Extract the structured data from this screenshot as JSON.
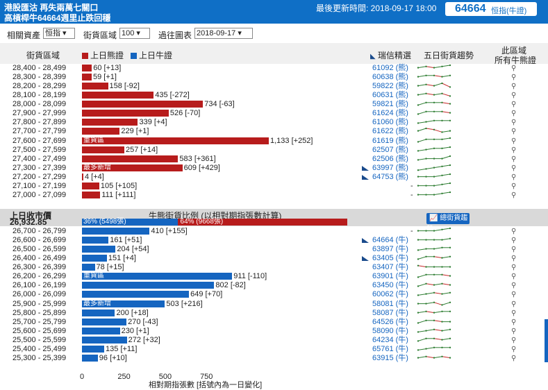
{
  "header": {
    "line1": "港股匯沽 再失兩萬七關口",
    "line2": "高槓桿牛64664週里止跌回穩",
    "update_label": "最後更新時間: 2018-09-17 18:00",
    "badge_number": "64664",
    "badge_label": "恒指(牛證)"
  },
  "filters": {
    "asset_label": "相關資產",
    "asset_value": "恒指 ▾",
    "zone_label": "街貨區域",
    "zone_value": "100 ▾",
    "date_label": "過往圖表",
    "date_value": "2018-09-17 ▾"
  },
  "columns": {
    "zone": "街貨區域",
    "bear": "上日熊證",
    "bull": "上日牛證",
    "pick": "瑞信精選",
    "trend": "五日街貨趨勢",
    "lookup_line1": "此區域",
    "lookup_line2": "所有牛熊證"
  },
  "colors": {
    "bear": "#b71c1c",
    "bull": "#1565c0",
    "up": "#2e7d32",
    "down": "#c62828"
  },
  "bear_rows": [
    {
      "range": "28,400 - 28,499",
      "value": 60,
      "label": "60 [+13]",
      "code": "61092 (熊)",
      "pick": false,
      "tag": "",
      "trend": [
        3,
        4,
        3,
        4,
        5
      ],
      "lookup": true
    },
    {
      "range": "28,300 - 28,399",
      "value": 59,
      "label": "59 [+1]",
      "code": "60638 (熊)",
      "pick": false,
      "tag": "",
      "trend": [
        3,
        4,
        4,
        3,
        4
      ],
      "lookup": true
    },
    {
      "range": "28,200 - 28,299",
      "value": 158,
      "label": "158 [-92]",
      "code": "59822 (熊)",
      "pick": false,
      "tag": "",
      "trend": [
        3,
        4,
        3,
        5,
        2
      ],
      "lookup": true
    },
    {
      "range": "28,100 - 28,199",
      "value": 435,
      "label": "435 [-272]",
      "code": "60631 (熊)",
      "pick": false,
      "tag": "",
      "trend": [
        3,
        4,
        3,
        4,
        2
      ],
      "lookup": true
    },
    {
      "range": "28,000 - 28,099",
      "value": 734,
      "label": "734 [-63]",
      "code": "59821 (熊)",
      "pick": false,
      "tag": "",
      "trend": [
        2,
        4,
        4,
        4,
        3
      ],
      "lookup": true
    },
    {
      "range": "27,900 - 27,999",
      "value": 526,
      "label": "526 [-70]",
      "code": "61624 (熊)",
      "pick": false,
      "tag": "",
      "trend": [
        2,
        4,
        4,
        4,
        3
      ],
      "lookup": true
    },
    {
      "range": "27,800 - 27,899",
      "value": 339,
      "label": "339 [+4]",
      "code": "61060 (熊)",
      "pick": false,
      "tag": "",
      "trend": [
        2,
        3,
        4,
        4,
        4
      ],
      "lookup": true
    },
    {
      "range": "27,700 - 27,799",
      "value": 229,
      "label": "229 [+1]",
      "code": "61622 (熊)",
      "pick": false,
      "tag": "",
      "trend": [
        3,
        5,
        4,
        2,
        3
      ],
      "lookup": true
    },
    {
      "range": "27,600 - 27,699",
      "value": 1133,
      "label": "1,133 [+252]",
      "code": "61619 (熊)",
      "pick": false,
      "tag": "重貨區",
      "trend": [
        2,
        4,
        4,
        4,
        5
      ],
      "lookup": true
    },
    {
      "range": "27,500 - 27,599",
      "value": 257,
      "label": "257 [+14]",
      "code": "62507 (熊)",
      "pick": false,
      "tag": "",
      "trend": [
        2,
        3,
        4,
        4,
        5
      ],
      "lookup": true
    },
    {
      "range": "27,400 - 27,499",
      "value": 583,
      "label": "583 [+361]",
      "code": "62506 (熊)",
      "pick": false,
      "tag": "",
      "trend": [
        2,
        3,
        3,
        3,
        5
      ],
      "lookup": true
    },
    {
      "range": "27,300 - 27,399",
      "value": 609,
      "label": "609 [+429]",
      "code": "63997 (熊)",
      "pick": true,
      "tag": "最多新增",
      "trend": [
        1,
        2,
        3,
        4,
        5
      ],
      "lookup": true
    },
    {
      "range": "27,200 - 27,299",
      "value": 4,
      "label": "4 [+4]",
      "code": "64753 (熊)",
      "pick": true,
      "tag": "",
      "trend": [
        3,
        3,
        3,
        4,
        5
      ],
      "lookup": true
    },
    {
      "range": "27,100 - 27,199",
      "value": 105,
      "label": "105 [+105]",
      "code": "-",
      "pick": false,
      "tag": "",
      "trend": [
        3,
        3,
        3,
        4,
        5
      ],
      "lookup": true
    },
    {
      "range": "27,000 - 27,099",
      "value": 111,
      "label": "111 [+111]",
      "code": "-",
      "pick": false,
      "tag": "",
      "trend": [
        3,
        3,
        3,
        4,
        5
      ],
      "lookup": true
    }
  ],
  "midbar": {
    "close_label": "上日收市價",
    "close_value": "26,932.85",
    "ratio_title": "牛熊街貨比例 (以相對期指張數計算)",
    "bull_pct": 36,
    "bull_text": "36% (5498張)",
    "bear_text": "64% (9668張)",
    "button": "總街貨趨勢"
  },
  "bull_rows": [
    {
      "range": "26,700 - 26,799",
      "value": 410,
      "label": "410 [+155]",
      "code": "-",
      "pick": false,
      "tag": "",
      "trend": [
        3,
        3,
        3,
        4,
        5
      ],
      "lookup": true
    },
    {
      "range": "26,600 - 26,699",
      "value": 161,
      "label": "161 [+51]",
      "code": "64664 (牛)",
      "pick": true,
      "tag": "",
      "trend": [
        3,
        3,
        3,
        3,
        4
      ],
      "lookup": true
    },
    {
      "range": "26,500 - 26,599",
      "value": 204,
      "label": "204 [+54]",
      "code": "63897 (牛)",
      "pick": false,
      "tag": "",
      "trend": [
        2,
        3,
        3,
        4,
        4
      ],
      "lookup": true
    },
    {
      "range": "26,400 - 26,499",
      "value": 151,
      "label": "151 [+4]",
      "code": "63405 (牛)",
      "pick": true,
      "tag": "",
      "trend": [
        2,
        4,
        4,
        3,
        4
      ],
      "lookup": true
    },
    {
      "range": "26,300 - 26,399",
      "value": 78,
      "label": "78 [+15]",
      "code": "63407 (牛)",
      "pick": false,
      "tag": "",
      "trend": [
        4,
        3,
        3,
        3,
        3
      ],
      "lookup": true
    },
    {
      "range": "26,200 - 26,299",
      "value": 911,
      "label": "911 [-110]",
      "code": "63901 (牛)",
      "pick": false,
      "tag": "重貨區",
      "trend": [
        2,
        4,
        4,
        4,
        3
      ],
      "lookup": true
    },
    {
      "range": "26,100 - 26,199",
      "value": 802,
      "label": "802 [-82]",
      "code": "63450 (牛)",
      "pick": false,
      "tag": "",
      "trend": [
        2,
        4,
        3,
        4,
        3
      ],
      "lookup": true
    },
    {
      "range": "26,000 - 26,099",
      "value": 649,
      "label": "649 [+70]",
      "code": "60062 (牛)",
      "pick": false,
      "tag": "",
      "trend": [
        2,
        3,
        4,
        3,
        4
      ],
      "lookup": true
    },
    {
      "range": "25,900 - 25,999",
      "value": 503,
      "label": "503 [+216]",
      "code": "58081 (牛)",
      "pick": false,
      "tag": "最多新增",
      "trend": [
        3,
        3,
        4,
        2,
        4
      ],
      "lookup": true
    },
    {
      "range": "25,800 - 25,899",
      "value": 200,
      "label": "200 [+18]",
      "code": "58087 (牛)",
      "pick": false,
      "tag": "",
      "trend": [
        3,
        4,
        3,
        4,
        4
      ],
      "lookup": true
    },
    {
      "range": "25,700 - 25,799",
      "value": 270,
      "label": "270 [-43]",
      "code": "64526 (牛)",
      "pick": false,
      "tag": "",
      "trend": [
        2,
        4,
        4,
        3,
        3
      ],
      "lookup": true
    },
    {
      "range": "25,600 - 25,699",
      "value": 230,
      "label": "230 [+1]",
      "code": "58090 (牛)",
      "pick": false,
      "tag": "",
      "trend": [
        2,
        3,
        4,
        3,
        4
      ],
      "lookup": true
    },
    {
      "range": "25,500 - 25,599",
      "value": 272,
      "label": "272 [+32]",
      "code": "64234 (牛)",
      "pick": false,
      "tag": "",
      "trend": [
        2,
        4,
        4,
        3,
        4
      ],
      "lookup": true
    },
    {
      "range": "25,400 - 25,499",
      "value": 135,
      "label": "135 [+11]",
      "code": "65761 (牛)",
      "pick": false,
      "tag": "",
      "trend": [
        2,
        3,
        4,
        4,
        4
      ],
      "lookup": true
    },
    {
      "range": "25,300 - 25,399",
      "value": 96,
      "label": "96 [+10]",
      "code": "63915 (牛)",
      "pick": false,
      "tag": "",
      "trend": [
        3,
        4,
        3,
        4,
        3
      ],
      "lookup": true
    }
  ],
  "axis": {
    "ticks": [
      "0",
      "250",
      "500",
      "750"
    ],
    "tick_values": [
      0,
      250,
      500,
      750
    ],
    "caption": "相對期指張數 [括號內為一日變化]"
  }
}
